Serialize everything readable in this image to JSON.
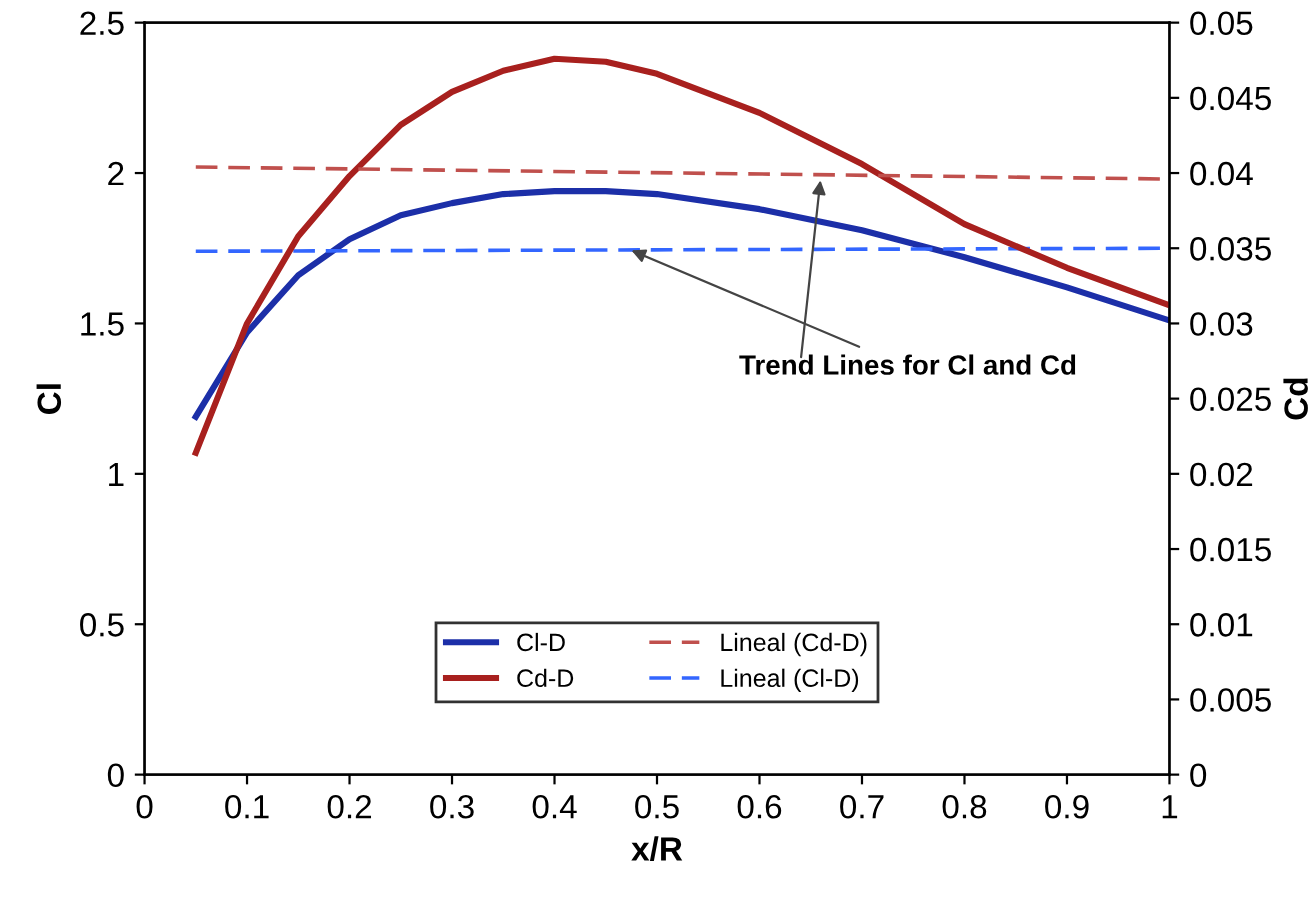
{
  "chart_data": {
    "type": "line",
    "xlabel": "x/R",
    "ylabel": "Cl",
    "y2label": "Cd",
    "xlim": [
      0,
      1
    ],
    "xticks": [
      0,
      0.1,
      0.2,
      0.3,
      0.4,
      0.5,
      0.6,
      0.7,
      0.8,
      0.9,
      1
    ],
    "ylim": [
      0,
      2.5
    ],
    "yticks": [
      0,
      0.5,
      1,
      1.5,
      2,
      2.5
    ],
    "y2lim": [
      0,
      0.05
    ],
    "y2ticks": [
      0,
      0.005,
      0.01,
      0.015,
      0.02,
      0.025,
      0.03,
      0.035,
      0.04,
      0.045,
      0.05
    ],
    "grid": false,
    "legend": "bottom",
    "marker": "none",
    "annotations": [
      {
        "text": "Trend Lines for Cl and Cd",
        "x": 0.47,
        "y": 1.75
      }
    ],
    "series": [
      {
        "name": "Cl-D",
        "color": "#1c2fa8",
        "line_style": "solid",
        "x": [
          0.05,
          0.1,
          0.15,
          0.2,
          0.25,
          0.3,
          0.35,
          0.4,
          0.45,
          0.5,
          0.6,
          0.7,
          0.8,
          0.9,
          1
        ],
        "values": [
          1.19,
          1.47,
          1.66,
          1.78,
          1.86,
          1.9,
          1.93,
          1.94,
          1.94,
          1.93,
          1.88,
          1.81,
          1.72,
          1.62,
          1.51
        ]
      },
      {
        "name": "Cd-D",
        "color": "#a8201e",
        "line_style": "solid",
        "axis": "y2",
        "x": [
          0.05,
          0.1,
          0.15,
          0.2,
          0.25,
          0.3,
          0.35,
          0.4,
          0.45,
          0.5,
          0.6,
          0.7,
          0.8,
          0.9,
          1
        ],
        "values": [
          0.0214,
          0.03,
          0.0358,
          0.0398,
          0.0432,
          0.0454,
          0.0468,
          0.0476,
          0.0474,
          0.0466,
          0.044,
          0.0406,
          0.0366,
          0.0337,
          0.0312
        ]
      },
      {
        "name": "Lineal (Cd-D)",
        "color": "#c0504d",
        "line_style": "dashed",
        "axis": "y2",
        "x": [
          0.05,
          1
        ],
        "values": [
          0.0404,
          0.0396
        ]
      },
      {
        "name": "Lineal (Cl-D)",
        "color": "#3366ff",
        "line_style": "dashed",
        "x": [
          0.05,
          1
        ],
        "values": [
          1.74,
          1.75
        ]
      }
    ]
  }
}
